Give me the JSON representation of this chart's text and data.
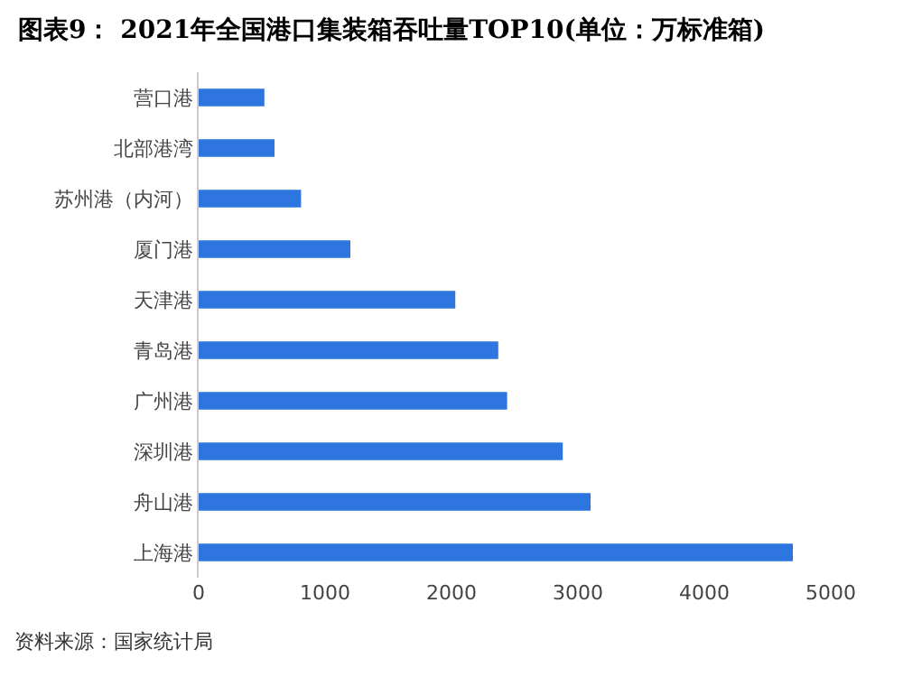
{
  "chart_data": {
    "type": "bar",
    "orientation": "horizontal",
    "title": "图表9： 2021年全国港口集装箱吞吐量TOP10(单位：万标准箱)",
    "categories": [
      "营口港",
      "北部港湾",
      "苏州港（内河）",
      "厦门港",
      "天津港",
      "青岛港",
      "广州港",
      "深圳港",
      "舟山港",
      "上海港"
    ],
    "values": [
      520,
      600,
      810,
      1200,
      2030,
      2370,
      2440,
      2880,
      3100,
      4700
    ],
    "color": "#2e75e0",
    "xlim": [
      0,
      5000
    ],
    "xticks": [
      0,
      1000,
      2000,
      3000,
      4000,
      5000
    ],
    "grid": false,
    "annotations": [
      "资料来源：国家统计局"
    ]
  }
}
